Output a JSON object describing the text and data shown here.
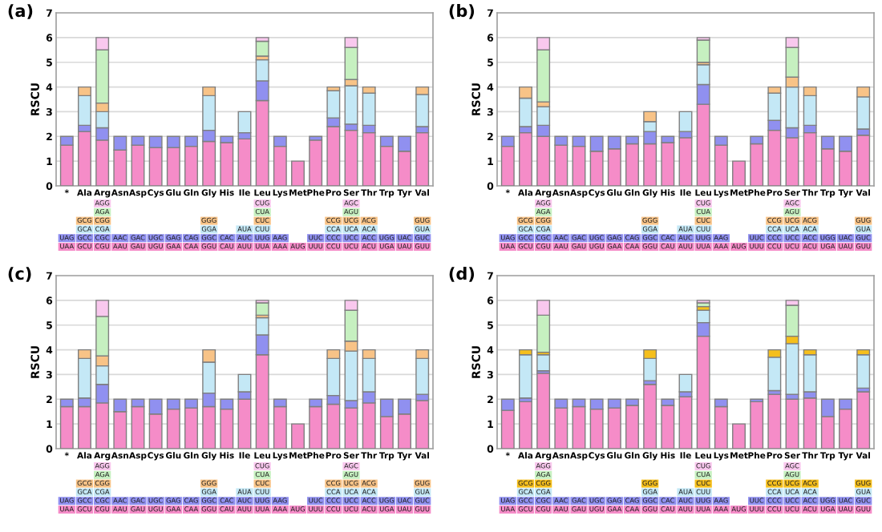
{
  "chart_data": [
    {
      "type": "bar",
      "title": "(a)",
      "ylabel": "RSCU",
      "stacked": true,
      "grid": "y",
      "ylim": [
        0,
        7
      ],
      "yticks": [
        0,
        1,
        2,
        3,
        4,
        5,
        6,
        7
      ],
      "categories": [
        "*",
        "Ala",
        "Arg",
        "Asn",
        "Asp",
        "Cys",
        "Glu",
        "Gln",
        "Gly",
        "His",
        "Ile",
        "Leu",
        "Lys",
        "Met",
        "Phe",
        "Pro",
        "Ser",
        "Thr",
        "Trp",
        "Tyr",
        "Val"
      ],
      "series": [
        {
          "color": "#f58cc8",
          "values": [
            1.65,
            2.2,
            1.85,
            1.45,
            1.65,
            1.55,
            1.55,
            1.6,
            1.8,
            1.75,
            1.9,
            3.45,
            1.6,
            1,
            1.85,
            2.4,
            2.25,
            2.15,
            1.6,
            1.4,
            2.15
          ],
          "value_labels": [
            "UAA",
            "GCU",
            "CGU",
            "AAU",
            "GAU",
            "UGU",
            "GAA",
            "CAA",
            "GGU",
            "CAU",
            "AUU",
            "UUA",
            "AAA",
            "AUG",
            "UUU",
            "CCU",
            "UCU",
            "ACU",
            "UGA",
            "UAU",
            "GUU"
          ]
        },
        {
          "color": "#9090f0",
          "values": [
            0.35,
            0.25,
            0.5,
            0.55,
            0.35,
            0.45,
            0.45,
            0.4,
            0.45,
            0.25,
            0.25,
            0.8,
            0.4,
            null,
            0.15,
            0.35,
            0.25,
            0.3,
            0.4,
            0.6,
            0.25
          ],
          "value_labels": [
            "UAG",
            "GCC",
            "CGC",
            "AAC",
            "GAC",
            "UGC",
            "GAG",
            "CAG",
            "GGC",
            "CAC",
            "AUC",
            "UUG",
            "AAG",
            null,
            "UUC",
            "CCC",
            "UCC",
            "ACC",
            "UGG",
            "UAC",
            "GUC"
          ]
        },
        {
          "color": "#c4e8f6",
          "values": [
            null,
            1.2,
            0.65,
            null,
            null,
            null,
            null,
            null,
            1.4,
            null,
            0.85,
            0.85,
            null,
            null,
            null,
            1.1,
            1.55,
            1.3,
            null,
            null,
            1.3
          ],
          "value_labels": [
            null,
            "GCA",
            "CGA",
            null,
            null,
            null,
            null,
            null,
            "GGA",
            null,
            "AUA",
            "CUU",
            null,
            null,
            null,
            "CCA",
            "UCA",
            "ACA",
            null,
            null,
            "GUA"
          ]
        },
        {
          "color": "#f8c387",
          "values": [
            null,
            0.35,
            0.35,
            null,
            null,
            null,
            null,
            null,
            0.35,
            null,
            null,
            0.15,
            null,
            null,
            null,
            0.15,
            0.25,
            0.25,
            null,
            null,
            0.3
          ],
          "value_labels": [
            null,
            "GCG",
            "CGG",
            null,
            null,
            null,
            null,
            null,
            "GGG",
            null,
            null,
            "CUC",
            null,
            null,
            null,
            "CCG",
            "UCG",
            "ACG",
            null,
            null,
            "GUG"
          ]
        },
        {
          "color": "#c6f0c0",
          "values": [
            null,
            null,
            2.15,
            null,
            null,
            null,
            null,
            null,
            null,
            null,
            null,
            0.6,
            null,
            null,
            null,
            null,
            1.3,
            null,
            null,
            null,
            null
          ],
          "value_labels": [
            null,
            null,
            "AGA",
            null,
            null,
            null,
            null,
            null,
            null,
            null,
            null,
            "CUA",
            null,
            null,
            null,
            null,
            "AGU",
            null,
            null,
            null,
            null
          ]
        },
        {
          "color": "#f9c8ee",
          "values": [
            null,
            null,
            0.5,
            null,
            null,
            null,
            null,
            null,
            null,
            null,
            null,
            0.15,
            null,
            null,
            null,
            null,
            0.4,
            null,
            null,
            null,
            null
          ],
          "value_labels": [
            null,
            null,
            "AGG",
            null,
            null,
            null,
            null,
            null,
            null,
            null,
            null,
            "CUG",
            null,
            null,
            null,
            null,
            "AGC",
            null,
            null,
            null,
            null
          ]
        }
      ]
    },
    {
      "type": "bar",
      "title": "(b)",
      "ylabel": "RSCU",
      "stacked": true,
      "grid": "y",
      "ylim": [
        0,
        7
      ],
      "yticks": [
        0,
        1,
        2,
        3,
        4,
        5,
        6,
        7
      ],
      "categories": [
        "*",
        "Ala",
        "Arg",
        "Asn",
        "Asp",
        "Cys",
        "Glu",
        "Gln",
        "Gly",
        "His",
        "Ile",
        "Leu",
        "Lys",
        "Met",
        "Phe",
        "Pro",
        "Ser",
        "Thr",
        "Trp",
        "Tyr",
        "Val"
      ],
      "series": [
        {
          "color": "#f58cc8",
          "values": [
            1.6,
            2.15,
            2.0,
            1.65,
            1.6,
            1.4,
            1.5,
            1.7,
            1.7,
            1.75,
            1.95,
            3.3,
            1.65,
            1,
            1.7,
            2.25,
            1.95,
            2.15,
            1.5,
            1.4,
            2.05
          ],
          "value_labels": [
            "UAA",
            "GCU",
            "CGU",
            "AAU",
            "GAU",
            "UGU",
            "GAA",
            "CAA",
            "GGU",
            "CAU",
            "AUU",
            "UUA",
            "AAA",
            "AUG",
            "UUU",
            "CCU",
            "UCU",
            "ACU",
            "UGA",
            "UAU",
            "GUU"
          ]
        },
        {
          "color": "#9090f0",
          "values": [
            0.4,
            0.25,
            0.45,
            0.35,
            0.4,
            0.6,
            0.5,
            0.3,
            0.5,
            0.25,
            0.25,
            0.8,
            0.35,
            null,
            0.3,
            0.4,
            0.4,
            0.3,
            0.5,
            0.6,
            0.25
          ],
          "value_labels": [
            "UAG",
            "GCC",
            "CGC",
            "AAC",
            "GAC",
            "UGC",
            "GAG",
            "CAG",
            "GGC",
            "CAC",
            "AUC",
            "UUG",
            "AAG",
            null,
            "UUC",
            "CCC",
            "UCC",
            "ACC",
            "UGG",
            "UAC",
            "GUC"
          ]
        },
        {
          "color": "#c4e8f6",
          "values": [
            null,
            1.15,
            0.75,
            null,
            null,
            null,
            null,
            null,
            0.4,
            null,
            0.8,
            0.8,
            null,
            null,
            null,
            1.1,
            1.65,
            1.2,
            null,
            null,
            1.3
          ],
          "value_labels": [
            null,
            "GCA",
            "CGA",
            null,
            null,
            null,
            null,
            null,
            "GGA",
            null,
            "AUA",
            "CUU",
            null,
            null,
            null,
            "CCA",
            "UCA",
            "ACA",
            null,
            null,
            "GUA"
          ]
        },
        {
          "color": "#f8c387",
          "values": [
            null,
            0.45,
            0.2,
            null,
            null,
            null,
            null,
            null,
            0.4,
            null,
            null,
            0.1,
            null,
            null,
            null,
            0.25,
            0.4,
            0.35,
            null,
            null,
            0.4
          ],
          "value_labels": [
            null,
            "GCG",
            "CGG",
            null,
            null,
            null,
            null,
            null,
            "GGG",
            null,
            null,
            "CUC",
            null,
            null,
            null,
            "CCG",
            "UCG",
            "ACG",
            null,
            null,
            "GUG"
          ]
        },
        {
          "color": "#c6f0c0",
          "values": [
            null,
            null,
            2.1,
            null,
            null,
            null,
            null,
            null,
            null,
            null,
            null,
            0.9,
            null,
            null,
            null,
            null,
            1.2,
            null,
            null,
            null,
            null
          ],
          "value_labels": [
            null,
            null,
            "AGA",
            null,
            null,
            null,
            null,
            null,
            null,
            null,
            null,
            "CUA",
            null,
            null,
            null,
            null,
            "AGU",
            null,
            null,
            null,
            null
          ]
        },
        {
          "color": "#f9c8ee",
          "values": [
            null,
            null,
            0.5,
            null,
            null,
            null,
            null,
            null,
            null,
            null,
            null,
            0.1,
            null,
            null,
            null,
            null,
            0.4,
            null,
            null,
            null,
            null
          ],
          "value_labels": [
            null,
            null,
            "AGG",
            null,
            null,
            null,
            null,
            null,
            null,
            null,
            null,
            "CUG",
            null,
            null,
            null,
            null,
            "AGC",
            null,
            null,
            null,
            null
          ]
        }
      ]
    },
    {
      "type": "bar",
      "title": "(c)",
      "ylabel": "RSCU",
      "stacked": true,
      "grid": "y",
      "ylim": [
        0,
        7
      ],
      "yticks": [
        0,
        1,
        2,
        3,
        4,
        5,
        6,
        7
      ],
      "categories": [
        "*",
        "Ala",
        "Arg",
        "Asn",
        "Asp",
        "Cys",
        "Glu",
        "Gln",
        "Gly",
        "His",
        "Ile",
        "Leu",
        "Lys",
        "Met",
        "Phe",
        "Pro",
        "Ser",
        "Thr",
        "Trp",
        "Tyr",
        "Val"
      ],
      "series": [
        {
          "color": "#f58cc8",
          "values": [
            1.7,
            1.7,
            1.85,
            1.5,
            1.7,
            1.4,
            1.6,
            1.65,
            1.7,
            1.6,
            2.0,
            3.8,
            1.7,
            1,
            1.7,
            1.8,
            1.65,
            1.85,
            1.3,
            1.4,
            1.95
          ],
          "value_labels": [
            "UAA",
            "GCU",
            "CGU",
            "AAU",
            "GAU",
            "UGU",
            "GAA",
            "CAA",
            "GGU",
            "CAU",
            "AUU",
            "UUA",
            "AAA",
            "AUG",
            "UUU",
            "CCU",
            "UCU",
            "ACU",
            "UGA",
            "UAU",
            "GUU"
          ]
        },
        {
          "color": "#9090f0",
          "values": [
            0.3,
            0.35,
            0.75,
            0.5,
            0.3,
            0.6,
            0.4,
            0.35,
            0.55,
            0.4,
            0.3,
            0.8,
            0.3,
            null,
            0.3,
            0.35,
            0.3,
            0.45,
            0.7,
            0.6,
            0.25
          ],
          "value_labels": [
            "UAG",
            "GCC",
            "CGC",
            "AAC",
            "GAC",
            "UGC",
            "GAG",
            "CAG",
            "GGC",
            "CAC",
            "AUC",
            "UUG",
            "AAG",
            null,
            "UUC",
            "CCC",
            "UCC",
            "ACC",
            "UGG",
            "UAC",
            "GUC"
          ]
        },
        {
          "color": "#c4e8f6",
          "values": [
            null,
            1.6,
            0.75,
            null,
            null,
            null,
            null,
            null,
            1.25,
            null,
            0.7,
            0.7,
            null,
            null,
            null,
            1.5,
            2.0,
            1.35,
            null,
            null,
            1.45
          ],
          "value_labels": [
            null,
            "GCA",
            "CGA",
            null,
            null,
            null,
            null,
            null,
            "GGA",
            null,
            "AUA",
            "CUU",
            null,
            null,
            null,
            "CCA",
            "UCA",
            "ACA",
            null,
            null,
            "GUA"
          ]
        },
        {
          "color": "#f8c387",
          "values": [
            null,
            0.35,
            0.4,
            null,
            null,
            null,
            null,
            null,
            0.5,
            null,
            null,
            0.1,
            null,
            null,
            null,
            0.35,
            0.4,
            0.35,
            null,
            null,
            0.35
          ],
          "value_labels": [
            null,
            "GCG",
            "CGG",
            null,
            null,
            null,
            null,
            null,
            "GGG",
            null,
            null,
            "CUC",
            null,
            null,
            null,
            "CCG",
            "UCG",
            "ACG",
            null,
            null,
            "GUG"
          ]
        },
        {
          "color": "#c6f0c0",
          "values": [
            null,
            null,
            1.6,
            null,
            null,
            null,
            null,
            null,
            null,
            null,
            null,
            0.5,
            null,
            null,
            null,
            null,
            1.25,
            null,
            null,
            null,
            null
          ],
          "value_labels": [
            null,
            null,
            "AGA",
            null,
            null,
            null,
            null,
            null,
            null,
            null,
            null,
            "CUA",
            null,
            null,
            null,
            null,
            "AGU",
            null,
            null,
            null,
            null
          ]
        },
        {
          "color": "#f9c8ee",
          "values": [
            null,
            null,
            0.65,
            null,
            null,
            null,
            null,
            null,
            null,
            null,
            null,
            0.1,
            null,
            null,
            null,
            null,
            0.4,
            null,
            null,
            null,
            null
          ],
          "value_labels": [
            null,
            null,
            "AGG",
            null,
            null,
            null,
            null,
            null,
            null,
            null,
            null,
            "CUG",
            null,
            null,
            null,
            null,
            "AGC",
            null,
            null,
            null,
            null
          ]
        }
      ]
    },
    {
      "type": "bar",
      "title": "(d)",
      "ylabel": "RSCU",
      "stacked": true,
      "grid": "y",
      "ylim": [
        0,
        7
      ],
      "yticks": [
        0,
        1,
        2,
        3,
        4,
        5,
        6,
        7
      ],
      "categories": [
        "*",
        "Ala",
        "Arg",
        "Asn",
        "Asp",
        "Cys",
        "Glu",
        "Gln",
        "Gly",
        "His",
        "Ile",
        "Leu",
        "Lys",
        "Met",
        "Phe",
        "Pro",
        "Ser",
        "Thr",
        "Trp",
        "Tyr",
        "Val"
      ],
      "series": [
        {
          "color": "#f58cc8",
          "values": [
            1.55,
            1.9,
            3.05,
            1.65,
            1.7,
            1.6,
            1.65,
            1.75,
            2.6,
            1.75,
            2.1,
            4.55,
            1.7,
            1,
            1.9,
            2.2,
            2.0,
            2.05,
            1.3,
            1.6,
            2.3
          ],
          "value_labels": [
            "UAA",
            "GCU",
            "CGU",
            "AAU",
            "GAU",
            "UGU",
            "GAA",
            "CAA",
            "GGU",
            "CAU",
            "AUU",
            "UUA",
            "AAA",
            "AUG",
            "UUU",
            "CCU",
            "UCU",
            "ACU",
            "UGA",
            "UAU",
            "GUU"
          ]
        },
        {
          "color": "#9090f0",
          "values": [
            0.45,
            0.15,
            0.1,
            0.35,
            0.3,
            0.4,
            0.35,
            0.25,
            0.15,
            0.25,
            0.2,
            0.55,
            0.3,
            null,
            0.1,
            0.15,
            0.2,
            0.25,
            0.7,
            0.4,
            0.15
          ],
          "value_labels": [
            "UAG",
            "GCC",
            "CGC",
            "AAC",
            "GAC",
            "UGC",
            "GAG",
            "CAG",
            "GGC",
            "CAC",
            "AUC",
            "UUG",
            "AAG",
            null,
            "UUC",
            "CCC",
            "UCC",
            "ACC",
            "UGG",
            "UAC",
            "GUC"
          ]
        },
        {
          "color": "#c4e8f6",
          "values": [
            null,
            1.75,
            0.65,
            null,
            null,
            null,
            null,
            null,
            0.9,
            null,
            0.7,
            0.5,
            null,
            null,
            null,
            1.35,
            2.05,
            1.5,
            null,
            null,
            1.35
          ],
          "value_labels": [
            null,
            "GCA",
            "CGA",
            null,
            null,
            null,
            null,
            null,
            "GGA",
            null,
            "AUA",
            "CUU",
            null,
            null,
            null,
            "CCA",
            "UCA",
            "ACA",
            null,
            null,
            "GUA"
          ]
        },
        {
          "color": "#f5bf1c",
          "values": [
            null,
            0.2,
            0.1,
            null,
            null,
            null,
            null,
            null,
            0.35,
            null,
            null,
            0.15,
            null,
            null,
            null,
            0.3,
            0.3,
            0.2,
            null,
            null,
            0.2
          ],
          "value_labels": [
            null,
            "GCG",
            "CGG",
            null,
            null,
            null,
            null,
            null,
            "GGG",
            null,
            null,
            "CUC",
            null,
            null,
            null,
            "CCG",
            "UCG",
            "ACG",
            null,
            null,
            "GUG"
          ]
        },
        {
          "color": "#c6f0c0",
          "values": [
            null,
            null,
            1.5,
            null,
            null,
            null,
            null,
            null,
            null,
            null,
            null,
            0.15,
            null,
            null,
            null,
            null,
            1.25,
            null,
            null,
            null,
            null
          ],
          "value_labels": [
            null,
            null,
            "AGA",
            null,
            null,
            null,
            null,
            null,
            null,
            null,
            null,
            "CUA",
            null,
            null,
            null,
            null,
            "AGU",
            null,
            null,
            null,
            null
          ]
        },
        {
          "color": "#f9c8ee",
          "values": [
            null,
            null,
            0.6,
            null,
            null,
            null,
            null,
            null,
            null,
            null,
            null,
            0.1,
            null,
            null,
            null,
            null,
            0.2,
            null,
            null,
            null,
            null
          ],
          "value_labels": [
            null,
            null,
            "AGG",
            null,
            null,
            null,
            null,
            null,
            null,
            null,
            null,
            "CUG",
            null,
            null,
            null,
            null,
            "AGC",
            null,
            null,
            null,
            null
          ]
        }
      ]
    }
  ]
}
